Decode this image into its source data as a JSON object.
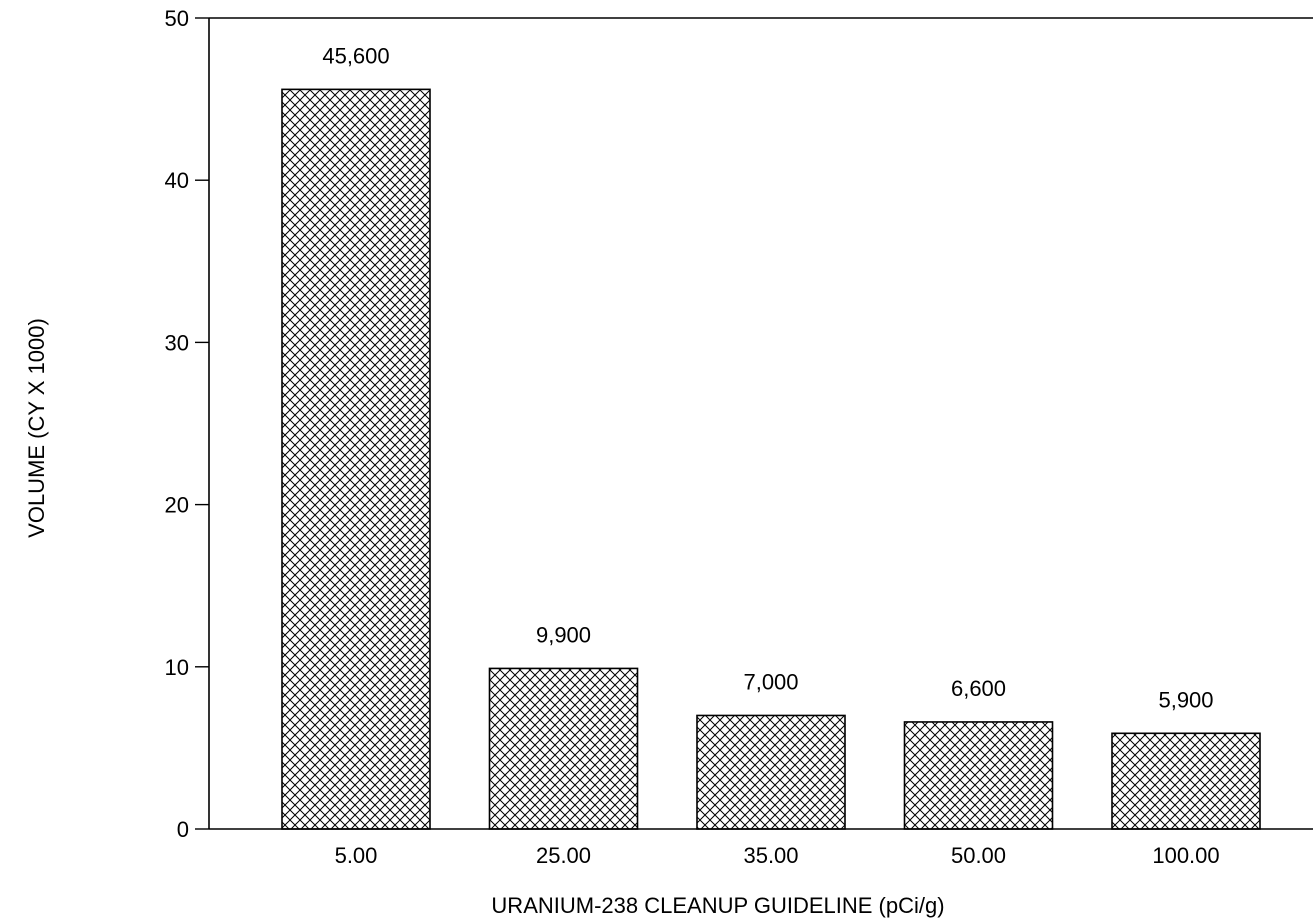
{
  "chart_data": {
    "type": "bar",
    "title": "",
    "xlabel": "URANIUM-238 CLEANUP GUIDELINE (pCi/g)",
    "ylabel": "VOLUME (CY X 1000)",
    "categories": [
      "5.00",
      "25.00",
      "35.00",
      "50.00",
      "100.00"
    ],
    "values": [
      45.6,
      9.9,
      7.0,
      6.6,
      5.9
    ],
    "data_labels": [
      "45,600",
      "9,900",
      "7,000",
      "6,600",
      "5,900"
    ],
    "ylim": [
      0,
      50
    ],
    "yticks": [
      0,
      10,
      20,
      30,
      40,
      50
    ],
    "ytick_labels": [
      "0",
      "10",
      "20",
      "30",
      "40",
      "50"
    ],
    "grid": false,
    "legend": "none",
    "bar_fill": "crosshatch",
    "colors": {
      "bar_stroke": "#000000",
      "hatch": "#000000",
      "background": "#ffffff"
    }
  }
}
